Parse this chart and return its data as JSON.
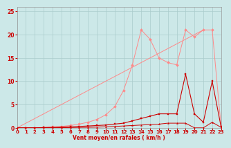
{
  "xlabel": "Vent moyen/en rafales ( km/h )",
  "bg_color": "#cce8e8",
  "grid_color": "#aacccc",
  "xlim": [
    0,
    23
  ],
  "ylim": [
    0,
    26
  ],
  "x_ticks": [
    0,
    1,
    2,
    3,
    4,
    5,
    6,
    7,
    8,
    9,
    10,
    11,
    12,
    13,
    14,
    15,
    16,
    17,
    18,
    19,
    20,
    21,
    22,
    23
  ],
  "y_ticks": [
    0,
    5,
    10,
    15,
    20,
    25
  ],
  "line_straight": {
    "x": [
      0,
      21
    ],
    "y": [
      0,
      21
    ],
    "color": "#ff8888",
    "lw": 0.7
  },
  "line_peaked": {
    "x": [
      0,
      1,
      2,
      3,
      4,
      5,
      6,
      7,
      8,
      9,
      10,
      11,
      12,
      13,
      14,
      15,
      16,
      17,
      18,
      19,
      20,
      21,
      22,
      23
    ],
    "y": [
      0,
      0,
      0,
      0.1,
      0.2,
      0.3,
      0.5,
      0.8,
      1.2,
      1.8,
      2.8,
      4.5,
      8.0,
      13.5,
      21.0,
      19.0,
      15.0,
      14.0,
      13.5,
      21.0,
      19.5,
      21.0,
      21.0,
      0.2
    ],
    "color": "#ff8888",
    "lw": 0.7,
    "marker": "D",
    "ms": 2.0
  },
  "line_mid": {
    "x": [
      0,
      1,
      2,
      3,
      4,
      5,
      6,
      7,
      8,
      9,
      10,
      11,
      12,
      13,
      14,
      15,
      16,
      17,
      18,
      19,
      20,
      21,
      22,
      23
    ],
    "y": [
      0,
      0,
      0,
      0.05,
      0.1,
      0.15,
      0.2,
      0.3,
      0.4,
      0.5,
      0.6,
      0.8,
      1.0,
      1.5,
      2.0,
      2.5,
      3.0,
      3.0,
      3.0,
      11.5,
      3.0,
      1.2,
      10.0,
      0.2
    ],
    "color": "#cc0000",
    "lw": 0.8,
    "marker": "s",
    "ms": 2.0
  },
  "line_low": {
    "x": [
      0,
      1,
      2,
      3,
      4,
      5,
      6,
      7,
      8,
      9,
      10,
      11,
      12,
      13,
      14,
      15,
      16,
      17,
      18,
      19,
      20,
      21,
      22,
      23
    ],
    "y": [
      0,
      0,
      0,
      0.02,
      0.03,
      0.05,
      0.07,
      0.1,
      0.12,
      0.15,
      0.2,
      0.3,
      0.4,
      0.5,
      0.6,
      0.7,
      0.8,
      1.0,
      1.0,
      1.0,
      0.0,
      0.0,
      1.2,
      0.1
    ],
    "color": "#cc0000",
    "lw": 0.7,
    "marker": "^",
    "ms": 1.5
  }
}
